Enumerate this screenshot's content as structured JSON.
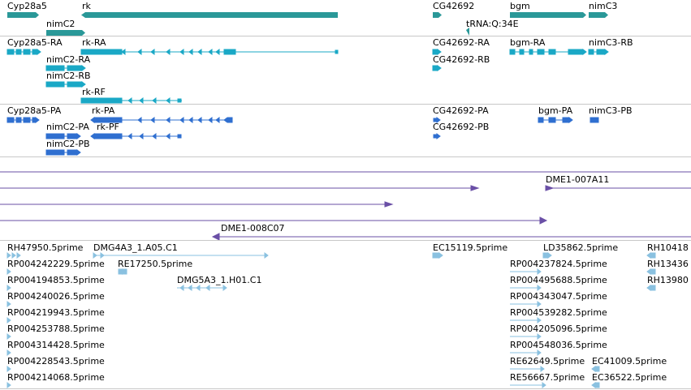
{
  "colors": {
    "gene": "#2a9898",
    "mrna": "#1aa8c6",
    "protein": "#2f6fd0",
    "clone": "#6a4fa6",
    "est": "#8ac1e0",
    "divider": "#c8c8c8"
  },
  "tracks": {
    "genes": {
      "labels": [
        "Cyp28a5",
        "rk",
        "nimC2",
        "CG42692",
        "bgm",
        "nimC3",
        "tRNA:Q:34E"
      ],
      "features": [
        {
          "id": "Cyp28a5",
          "strand": "+"
        },
        {
          "id": "rk",
          "strand": "-"
        },
        {
          "id": "nimC2",
          "strand": "+"
        },
        {
          "id": "CG42692",
          "strand": "+"
        },
        {
          "id": "tRNA:Q:34E",
          "strand": "-"
        },
        {
          "id": "bgm",
          "strand": "+"
        },
        {
          "id": "nimC3",
          "strand": "+"
        }
      ]
    },
    "mrna": {
      "labels": [
        "Cyp28a5-RA",
        "rk-RA",
        "nimC2-RA",
        "nimC2-RB",
        "rk-RF",
        "CG42692-RA",
        "CG42692-RB",
        "bgm-RA",
        "nimC3-RB"
      ]
    },
    "proteins": {
      "labels": [
        "Cyp28a5-PA",
        "rk-PA",
        "nimC2-PA",
        "rk-PF",
        "nimC2-PB",
        "CG42692-PA",
        "CG42692-PB",
        "bgm-PA",
        "nimC3-PB"
      ]
    },
    "clones": {
      "labels": [
        "DME1-007A11",
        "DME1-008C07"
      ]
    },
    "ests": {
      "labels": [
        "RH47950.5prime",
        "DMG4A3_1.A05.C1",
        "RP004242229.5prime",
        "RE17250.5prime",
        "RP004194853.5prime",
        "DMG5A3_1.H01.C1",
        "RP004240026.5prime",
        "RP004219943.5prime",
        "RP004253788.5prime",
        "RP004314428.5prime",
        "RP004228543.5prime",
        "RP004214068.5prime",
        "EC15119.5prime",
        "LD35862.5prime",
        "RH10418",
        "RP004237824.5prime",
        "RH13436",
        "RP004495688.5prime",
        "RH13980",
        "RP004343047.5prime",
        "RP004539282.5prime",
        "RP004205096.5prime",
        "RP004548036.5prime",
        "RE62649.5prime",
        "EC41009.5prime",
        "RE56667.5prime",
        "EC36522.5prime"
      ]
    }
  }
}
